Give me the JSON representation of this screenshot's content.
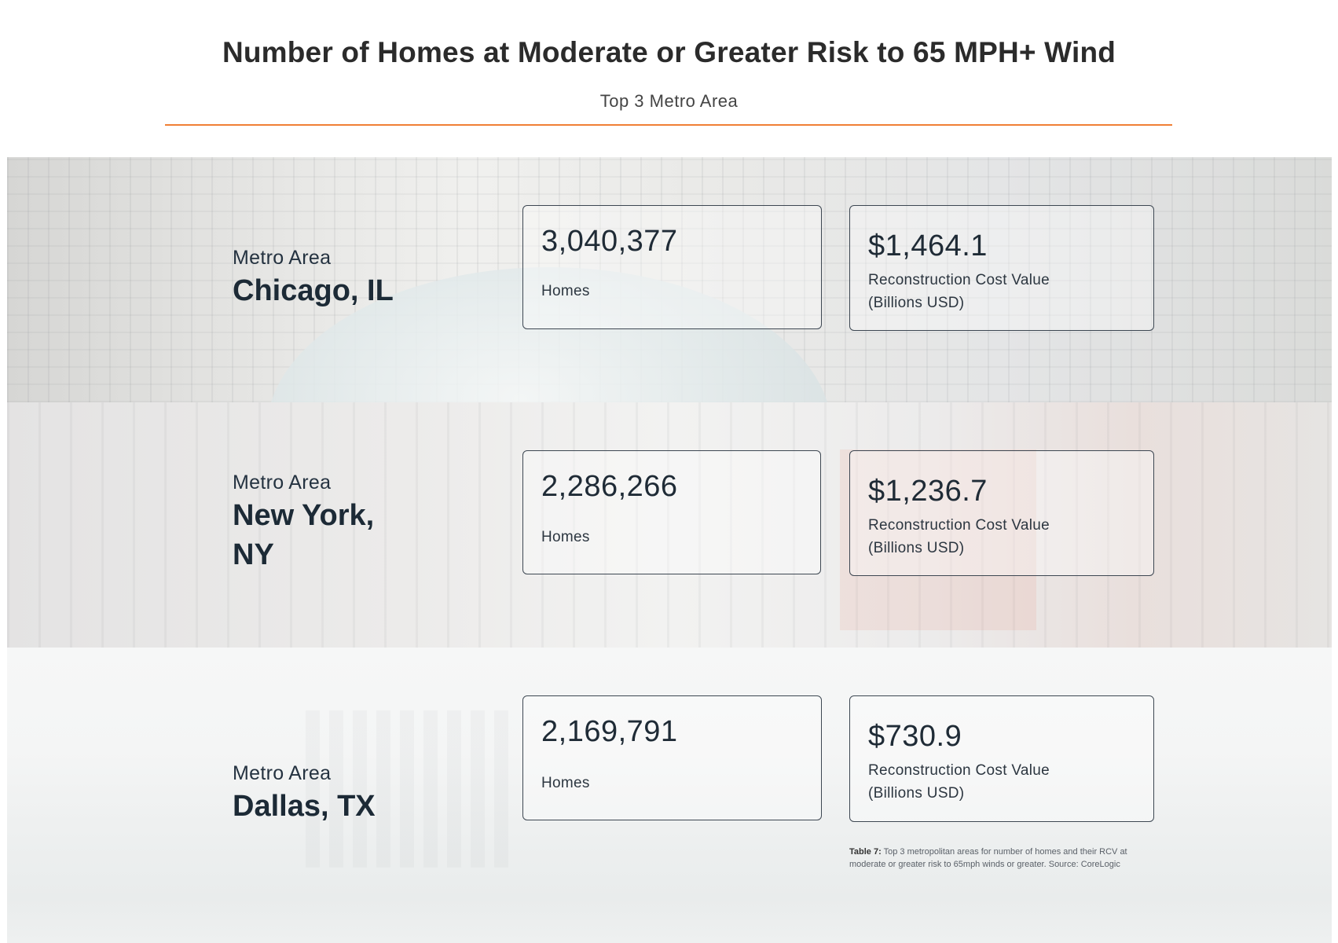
{
  "header": {
    "title": "Number of Homes at Moderate or Greater Risk to 65 MPH+ Wind",
    "subtitle": "Top 3 Metro Area"
  },
  "metros": [
    {
      "label": "Metro Area",
      "name": "Chicago, IL",
      "homes_value": "3,040,377",
      "homes_label": "Homes",
      "rcv_value": "$1,464.1",
      "rcv_label_line1": "Reconstruction Cost Value",
      "rcv_label_line2": "(Billions USD)"
    },
    {
      "label": "Metro Area",
      "name": "New York, NY",
      "homes_value": "2,286,266",
      "homes_label": "Homes",
      "rcv_value": "$1,236.7",
      "rcv_label_line1": "Reconstruction Cost Value",
      "rcv_label_line2": "(Billions USD)"
    },
    {
      "label": "Metro Area",
      "name": "Dallas, TX",
      "homes_value": "2,169,791",
      "homes_label": "Homes",
      "rcv_value": "$730.9",
      "rcv_label_line1": "Reconstruction Cost Value",
      "rcv_label_line2": "(Billions USD)"
    }
  ],
  "footnote": {
    "table_label": "Table 7:",
    "text": " Top 3 metropolitan areas for number of homes and their RCV at moderate or greater risk to 65mph winds or greater. Source: CoreLogic"
  },
  "colors": {
    "accent_rule": "#f07f35",
    "text_dark": "#1c2a36"
  }
}
